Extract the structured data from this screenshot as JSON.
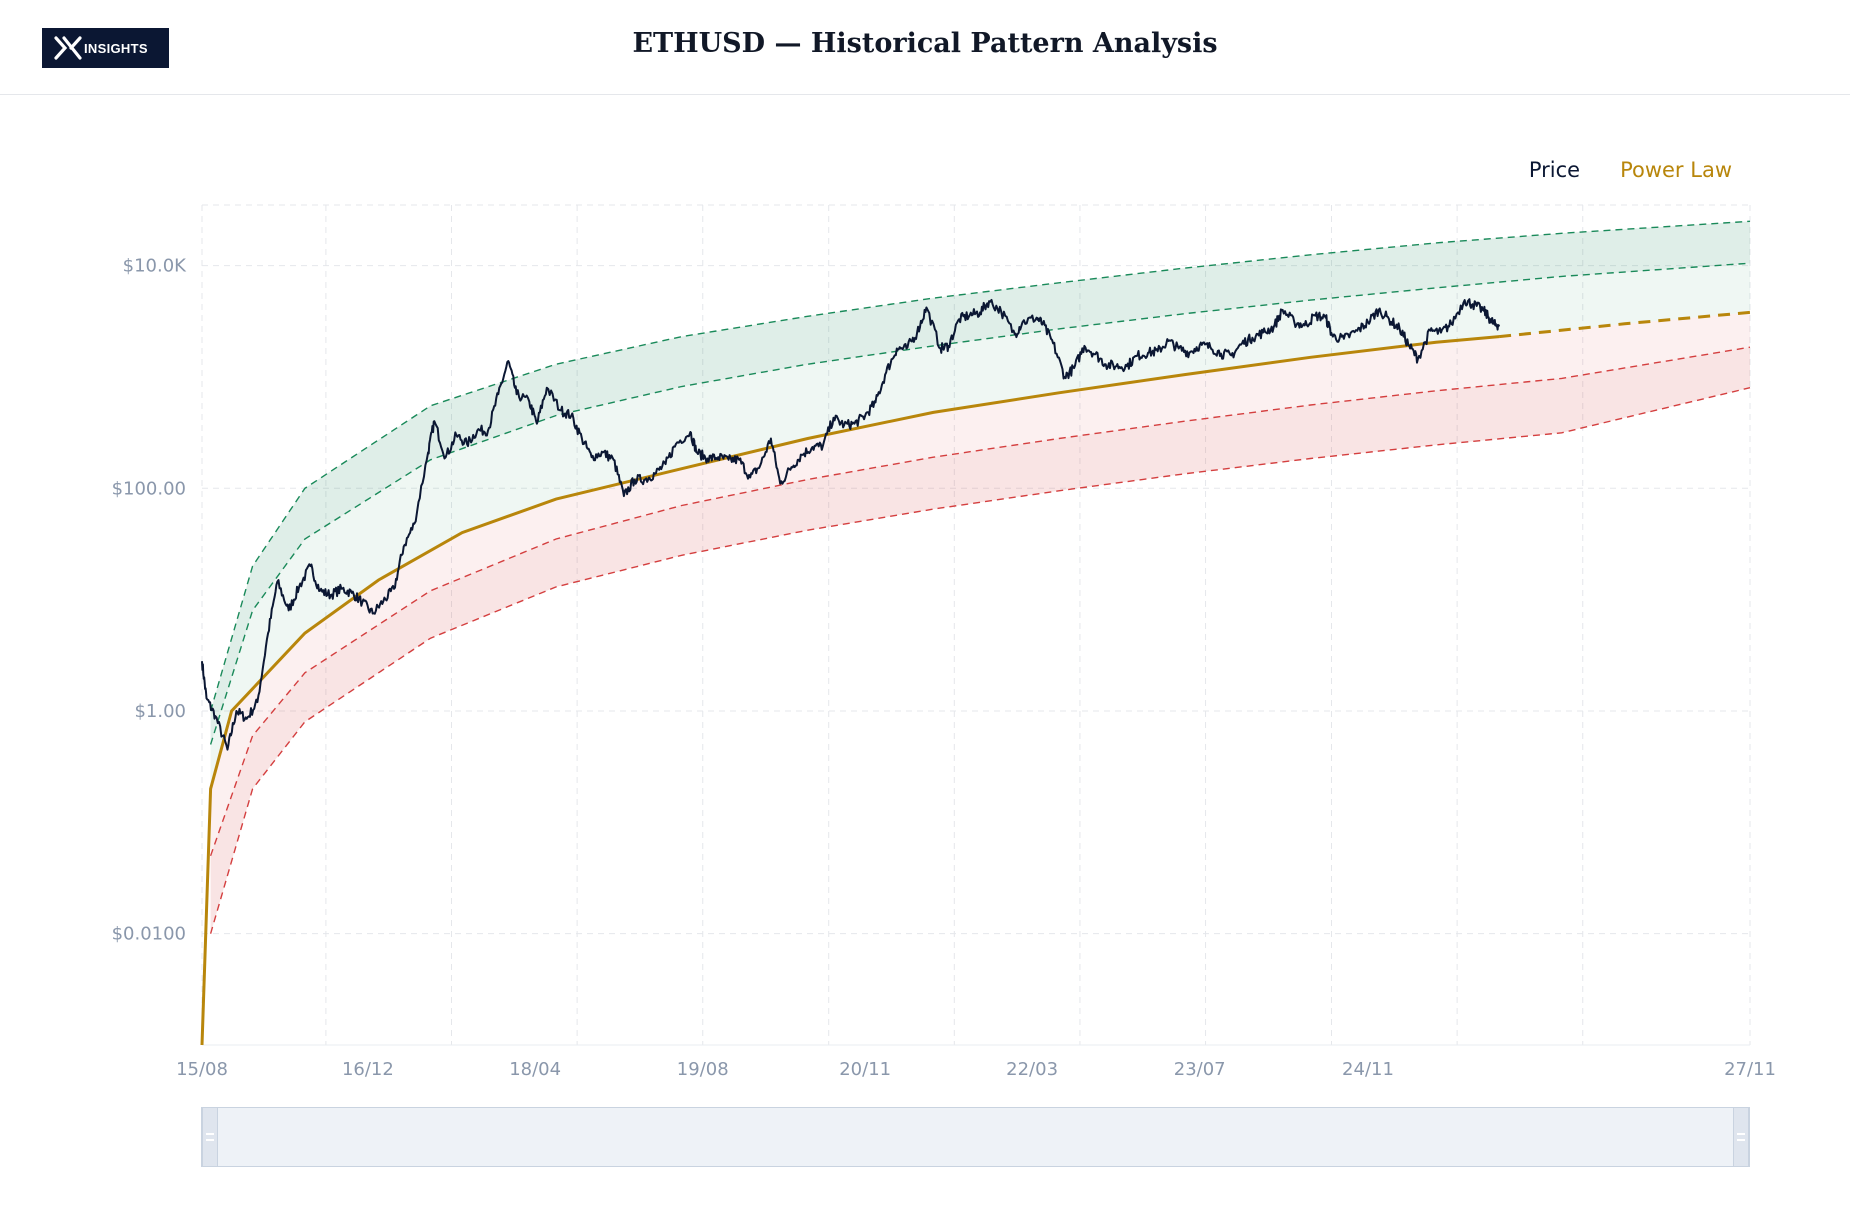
{
  "header": {
    "logo_text": "INSIGHTS",
    "title": "ETHUSD — Historical Pattern Analysis"
  },
  "legend": {
    "price_label": "Price",
    "power_law_label": "Power Law"
  },
  "colors": {
    "price": "#0b1733",
    "power_law": "#b8860b",
    "upper_band": "#1a8a5a",
    "lower_band": "#d43f3f",
    "grid": "#e5e7eb",
    "axis_text": "#8a97ab"
  },
  "chart_data": {
    "type": "line",
    "title": "ETHUSD — Historical Pattern Analysis",
    "y_scale": "log",
    "ylim": [
      0.001,
      35000
    ],
    "xlim": [
      "2015-08-07",
      "2027-11-30"
    ],
    "x_tick_labels": [
      "15/08",
      "16/12",
      "18/04",
      "19/08",
      "20/11",
      "22/03",
      "23/07",
      "24/11",
      "27/11"
    ],
    "y_tick_labels": [
      "$10.0K",
      "$100.00",
      "$1.00",
      "$0.0100"
    ],
    "y_tick_values": [
      10000,
      100,
      1,
      0.01
    ],
    "legend": [
      "Price",
      "Power Law"
    ],
    "legend_position": "top-right",
    "grid": true,
    "power_law": {
      "note": "fair value curve, solid through history, dashed projection",
      "points": [
        [
          "2015-08-07",
          0.001
        ],
        [
          "2015-09-01",
          0.2
        ],
        [
          "2015-11-01",
          1.0
        ],
        [
          "2016-06-01",
          5.0
        ],
        [
          "2017-01-01",
          15
        ],
        [
          "2017-09-01",
          40
        ],
        [
          "2018-06-01",
          80
        ],
        [
          "2019-06-01",
          150
        ],
        [
          "2020-06-01",
          280
        ],
        [
          "2021-06-01",
          480
        ],
        [
          "2022-06-01",
          720
        ],
        [
          "2023-06-01",
          1050
        ],
        [
          "2024-06-01",
          1500
        ],
        [
          "2025-06-01",
          2050
        ],
        [
          "2025-12-01",
          2300
        ],
        [
          "2026-12-01",
          3000
        ],
        [
          "2027-11-30",
          3800
        ]
      ]
    },
    "bands": [
      {
        "name": "upper-outer",
        "points": [
          [
            "2015-09-01",
            1.0
          ],
          [
            "2016-01-01",
            20
          ],
          [
            "2016-06-01",
            100
          ],
          [
            "2017-06-01",
            550
          ],
          [
            "2018-06-01",
            1300
          ],
          [
            "2019-06-01",
            2300
          ],
          [
            "2020-06-01",
            3500
          ],
          [
            "2021-06-01",
            5100
          ],
          [
            "2022-06-01",
            7000
          ],
          [
            "2023-06-01",
            9500
          ],
          [
            "2024-06-01",
            12500
          ],
          [
            "2025-06-01",
            16000
          ],
          [
            "2026-06-01",
            19500
          ],
          [
            "2027-11-30",
            25000
          ]
        ]
      },
      {
        "name": "upper-inner",
        "points": [
          [
            "2015-09-01",
            0.5
          ],
          [
            "2016-01-01",
            8
          ],
          [
            "2016-06-01",
            35
          ],
          [
            "2017-06-01",
            180
          ],
          [
            "2018-06-01",
            450
          ],
          [
            "2019-06-01",
            820
          ],
          [
            "2020-06-01",
            1300
          ],
          [
            "2021-06-01",
            1900
          ],
          [
            "2022-06-01",
            2700
          ],
          [
            "2023-06-01",
            3700
          ],
          [
            "2024-06-01",
            4900
          ],
          [
            "2025-06-01",
            6300
          ],
          [
            "2026-06-01",
            8000
          ],
          [
            "2027-11-30",
            10500
          ]
        ]
      },
      {
        "name": "lower-inner",
        "points": [
          [
            "2015-09-01",
            0.05
          ],
          [
            "2016-01-01",
            0.6
          ],
          [
            "2016-06-01",
            2.2
          ],
          [
            "2017-06-01",
            12
          ],
          [
            "2018-06-01",
            35
          ],
          [
            "2019-06-01",
            70
          ],
          [
            "2020-06-01",
            120
          ],
          [
            "2021-06-01",
            190
          ],
          [
            "2022-06-01",
            280
          ],
          [
            "2023-06-01",
            400
          ],
          [
            "2024-06-01",
            560
          ],
          [
            "2025-06-01",
            750
          ],
          [
            "2026-06-01",
            970
          ],
          [
            "2027-11-30",
            1850
          ]
        ]
      },
      {
        "name": "lower-outer",
        "points": [
          [
            "2015-09-01",
            0.01
          ],
          [
            "2016-01-01",
            0.2
          ],
          [
            "2016-06-01",
            0.8
          ],
          [
            "2017-06-01",
            4.5
          ],
          [
            "2018-06-01",
            13
          ],
          [
            "2019-06-01",
            25
          ],
          [
            "2020-06-01",
            42
          ],
          [
            "2021-06-01",
            65
          ],
          [
            "2022-06-01",
            95
          ],
          [
            "2023-06-01",
            135
          ],
          [
            "2024-06-01",
            185
          ],
          [
            "2025-06-01",
            245
          ],
          [
            "2026-06-01",
            315
          ],
          [
            "2027-11-30",
            800
          ]
        ]
      }
    ],
    "price": {
      "note": "approximate daily closes (USD)",
      "points": [
        [
          "2015-08-07",
          2.8
        ],
        [
          "2015-08-20",
          1.3
        ],
        [
          "2015-09-15",
          0.9
        ],
        [
          "2015-10-20",
          0.45
        ],
        [
          "2015-11-15",
          1.0
        ],
        [
          "2015-12-15",
          0.85
        ],
        [
          "2016-01-15",
          1.2
        ],
        [
          "2016-02-15",
          5.0
        ],
        [
          "2016-03-13",
          14.5
        ],
        [
          "2016-04-15",
          8.0
        ],
        [
          "2016-05-15",
          13.0
        ],
        [
          "2016-06-17",
          20.0
        ],
        [
          "2016-07-15",
          12.0
        ],
        [
          "2016-08-15",
          11.0
        ],
        [
          "2016-09-15",
          12.5
        ],
        [
          "2016-10-15",
          11.5
        ],
        [
          "2016-11-15",
          9.5
        ],
        [
          "2016-12-15",
          7.5
        ],
        [
          "2017-01-15",
          9.7
        ],
        [
          "2017-02-15",
          12.5
        ],
        [
          "2017-03-15",
          30.0
        ],
        [
          "2017-04-15",
          48.0
        ],
        [
          "2017-05-25",
          210
        ],
        [
          "2017-06-12",
          400
        ],
        [
          "2017-07-15",
          190
        ],
        [
          "2017-08-15",
          300
        ],
        [
          "2017-09-15",
          250
        ],
        [
          "2017-10-15",
          330
        ],
        [
          "2017-11-15",
          330
        ],
        [
          "2017-12-15",
          700
        ],
        [
          "2018-01-13",
          1390
        ],
        [
          "2018-02-06",
          700
        ],
        [
          "2018-03-15",
          600
        ],
        [
          "2018-04-06",
          380
        ],
        [
          "2018-05-05",
          800
        ],
        [
          "2018-06-15",
          500
        ],
        [
          "2018-07-15",
          450
        ],
        [
          "2018-08-15",
          280
        ],
        [
          "2018-09-12",
          190
        ],
        [
          "2018-10-15",
          210
        ],
        [
          "2018-11-15",
          180
        ],
        [
          "2018-12-15",
          85
        ],
        [
          "2019-01-15",
          120
        ],
        [
          "2019-02-15",
          120
        ],
        [
          "2019-03-15",
          135
        ],
        [
          "2019-04-15",
          165
        ],
        [
          "2019-05-15",
          250
        ],
        [
          "2019-06-26",
          320
        ],
        [
          "2019-07-15",
          210
        ],
        [
          "2019-08-15",
          185
        ],
        [
          "2019-09-15",
          190
        ],
        [
          "2019-10-15",
          180
        ],
        [
          "2019-11-15",
          180
        ],
        [
          "2019-12-17",
          125
        ],
        [
          "2020-01-15",
          160
        ],
        [
          "2020-02-15",
          280
        ],
        [
          "2020-03-13",
          110
        ],
        [
          "2020-04-15",
          155
        ],
        [
          "2020-05-15",
          200
        ],
        [
          "2020-06-15",
          235
        ],
        [
          "2020-07-15",
          240
        ],
        [
          "2020-08-15",
          430
        ],
        [
          "2020-09-15",
          370
        ],
        [
          "2020-10-15",
          380
        ],
        [
          "2020-11-15",
          450
        ],
        [
          "2020-12-15",
          590
        ],
        [
          "2021-01-15",
          1100
        ],
        [
          "2021-02-15",
          1800
        ],
        [
          "2021-03-15",
          1800
        ],
        [
          "2021-04-15",
          2500
        ],
        [
          "2021-05-12",
          4200
        ],
        [
          "2021-06-22",
          1800
        ],
        [
          "2021-07-15",
          1900
        ],
        [
          "2021-08-15",
          3300
        ],
        [
          "2021-09-15",
          3600
        ],
        [
          "2021-10-15",
          3800
        ],
        [
          "2021-11-10",
          4800
        ],
        [
          "2021-12-15",
          3900
        ],
        [
          "2022-01-24",
          2400
        ],
        [
          "2022-02-15",
          3100
        ],
        [
          "2022-03-28",
          3400
        ],
        [
          "2022-04-15",
          3000
        ],
        [
          "2022-05-15",
          2000
        ],
        [
          "2022-06-18",
          1000
        ],
        [
          "2022-07-15",
          1200
        ],
        [
          "2022-08-14",
          1900
        ],
        [
          "2022-09-15",
          1600
        ],
        [
          "2022-10-15",
          1300
        ],
        [
          "2022-11-15",
          1250
        ],
        [
          "2022-12-15",
          1250
        ],
        [
          "2023-01-15",
          1550
        ],
        [
          "2023-02-15",
          1650
        ],
        [
          "2023-03-15",
          1700
        ],
        [
          "2023-04-15",
          2100
        ],
        [
          "2023-05-15",
          1800
        ],
        [
          "2023-06-15",
          1650
        ],
        [
          "2023-07-15",
          1930
        ],
        [
          "2023-08-15",
          1850
        ],
        [
          "2023-09-15",
          1620
        ],
        [
          "2023-10-15",
          1560
        ],
        [
          "2023-11-15",
          2000
        ],
        [
          "2023-12-15",
          2250
        ],
        [
          "2024-01-15",
          2500
        ],
        [
          "2024-02-15",
          2800
        ],
        [
          "2024-03-12",
          4000
        ],
        [
          "2024-04-15",
          3100
        ],
        [
          "2024-05-15",
          2900
        ],
        [
          "2024-06-15",
          3550
        ],
        [
          "2024-07-15",
          3400
        ],
        [
          "2024-08-05",
          2300
        ],
        [
          "2024-09-06",
          2200
        ],
        [
          "2024-10-15",
          2600
        ],
        [
          "2024-11-15",
          3100
        ],
        [
          "2024-12-16",
          4000
        ],
        [
          "2025-01-15",
          3300
        ],
        [
          "2025-02-15",
          2700
        ],
        [
          "2025-03-15",
          1900
        ],
        [
          "2025-04-09",
          1450
        ],
        [
          "2025-05-15",
          2600
        ],
        [
          "2025-06-15",
          2500
        ],
        [
          "2025-07-15",
          3000
        ],
        [
          "2025-08-23",
          4900
        ],
        [
          "2025-09-15",
          4500
        ],
        [
          "2025-10-15",
          4000
        ],
        [
          "2025-11-05",
          3300
        ],
        [
          "2025-11-20",
          2900
        ],
        [
          "2025-12-01",
          2950
        ]
      ]
    }
  }
}
